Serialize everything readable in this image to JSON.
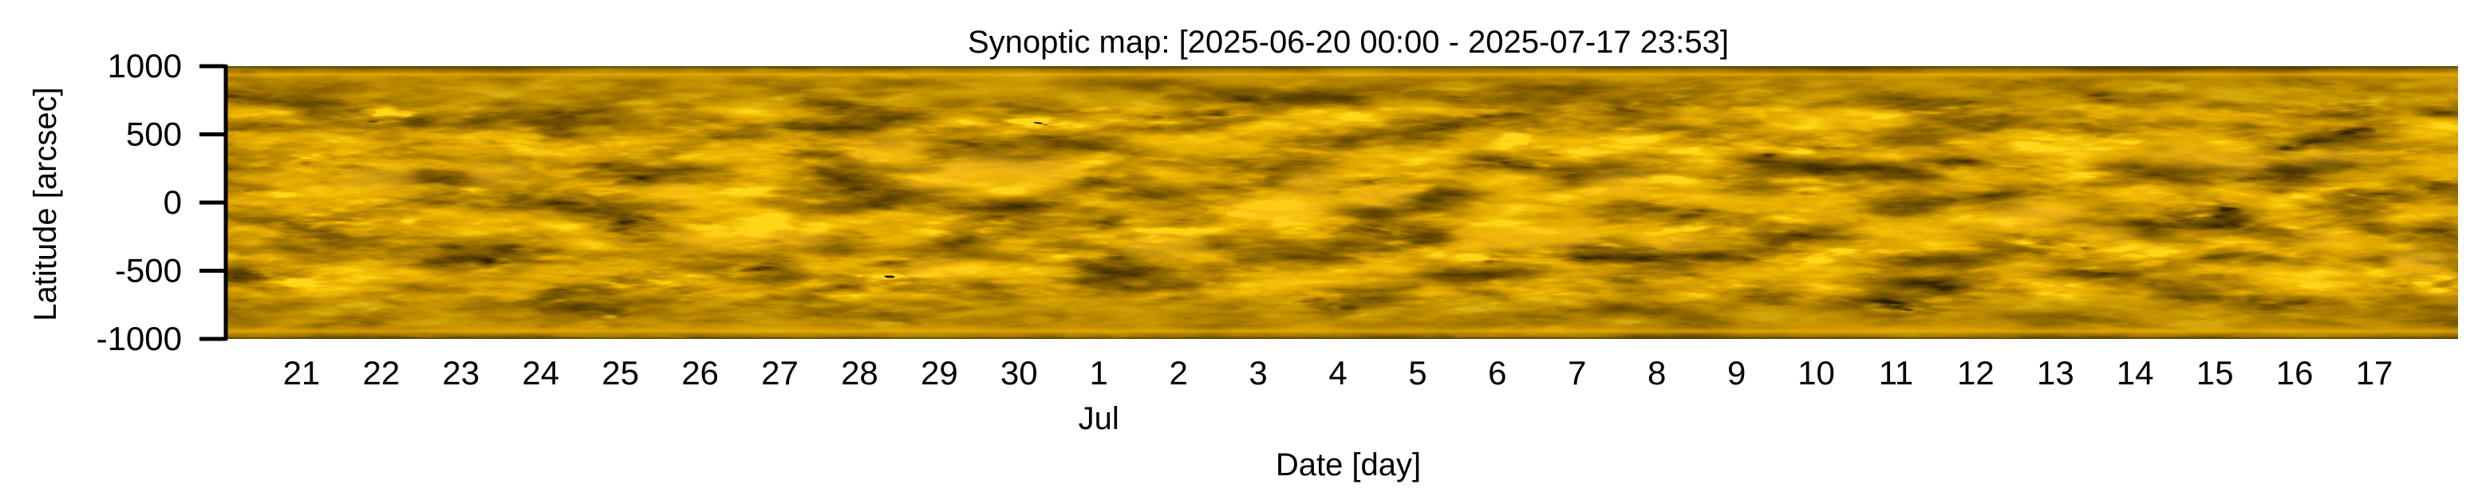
{
  "chart_data": {
    "type": "heatmap",
    "title": "Synoptic map: [2025-06-20 00:00 - 2025-07-17 23:53]",
    "xlabel": "Date [day]",
    "ylabel": "Latitude [arcsec]",
    "xlim": [
      "2025-06-20 00:00",
      "2025-07-17 23:53"
    ],
    "xlim_days": [
      0,
      28
    ],
    "ylim": [
      -1000,
      1000
    ],
    "yticks": {
      "values": [
        1000,
        500,
        0,
        -500,
        -1000
      ],
      "labels": [
        "1000",
        "500",
        "0",
        "-500",
        "-1000"
      ]
    },
    "xticks": {
      "day_offsets": [
        1,
        2,
        3,
        4,
        5,
        6,
        7,
        8,
        9,
        10,
        11,
        12,
        13,
        14,
        15,
        16,
        17,
        18,
        19,
        20,
        21,
        22,
        23,
        24,
        25,
        26,
        27
      ],
      "labels": [
        "21",
        "22",
        "23",
        "24",
        "25",
        "26",
        "27",
        "28",
        "29",
        "30",
        "1",
        "2",
        "3",
        "4",
        "5",
        "6",
        "7",
        "8",
        "9",
        "10",
        "11",
        "12",
        "13",
        "14",
        "15",
        "16",
        "17"
      ]
    },
    "month_label": {
      "text": "Jul",
      "day_offset": 11
    },
    "colormap": {
      "dark": "#2e2100",
      "mid": "#8a6400",
      "bright": "#f2b400",
      "peak": "#fff0a0"
    },
    "grid": false
  }
}
